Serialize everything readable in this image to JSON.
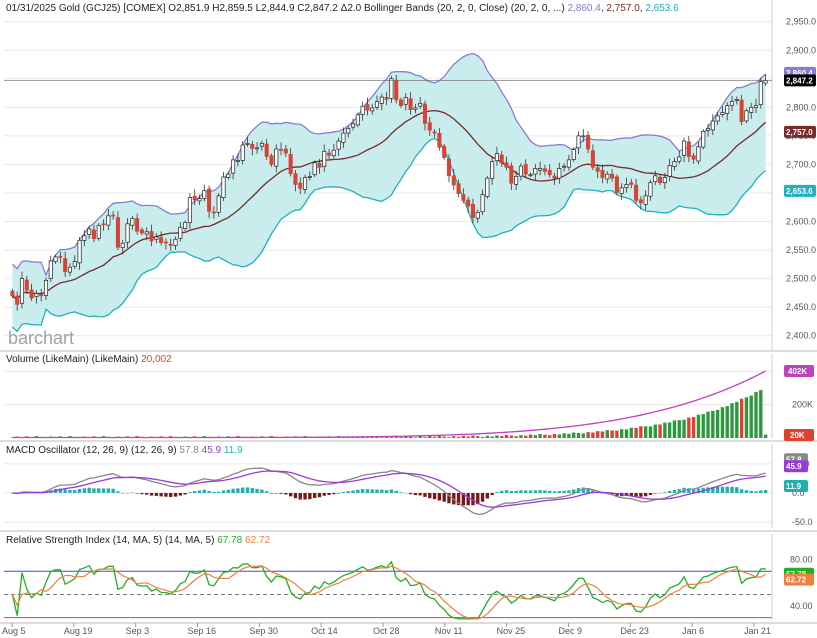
{
  "header": {
    "main_prefix": "01/31/2025 Gold (GCJ25) [COMEX] O2,851.9 H2,859.5 L2,844.9 C2,847.2 Δ2.0 Bollinger Bands (20, 2, 0, Close) (20, 2, 0, ...)",
    "bb_upper": "2,860.4",
    "bb_mid": "2,757.0",
    "bb_lower": "2,653.6",
    "volume_title": "Volume (LikeMain) (LikeMain)",
    "volume_value": "20,002",
    "macd_title": "MACD Oscillator (12, 26, 9) (12, 26, 9)",
    "macd_values": [
      "57.8",
      "45.9",
      "11.9"
    ],
    "rsi_title": "Relative Strength Index (14, MA, 5) (14, MA, 5)",
    "rsi_values": [
      "67.78",
      "62.72"
    ]
  },
  "logo": "barchart",
  "colors": {
    "up": "#1a7a1a",
    "down": "#d64436",
    "band_fill": "#c9ecec",
    "band_upper": "#8a7ad6",
    "band_mid": "#7a2a2a",
    "band_lower": "#20b0c0",
    "last_tag": "#000000",
    "vol_up": "#2a9a3a",
    "vol_down": "#e04030",
    "vol_ma": "#c040c0",
    "macd_line": "#888888",
    "macd_signal": "#9a3ad8",
    "macd_pos": "#20b0b0",
    "macd_neg": "#7a1818",
    "rsi_line": "#22b022",
    "rsi_ma": "#f08040",
    "rsi_level": "#3a4ad8"
  },
  "chart_data": [
    {
      "type": "candlestick",
      "title": "01/31/2025 Gold (GCJ25) [COMEX]",
      "x_tick_labels": [
        "Aug 5",
        "Aug 19",
        "Sep 3",
        "Sep 16",
        "Sep 30",
        "Oct 14",
        "Oct 28",
        "Nov 11",
        "Nov 25",
        "Dec 9",
        "Dec 23",
        "Jan 6",
        "Jan 21"
      ],
      "y_tick_labels": [
        "2,400.0",
        "2,450.0",
        "2,500.0",
        "2,550.0",
        "2,600.0",
        "2,650.0",
        "2,700.0",
        "2,750.0",
        "2,800.0",
        "2,850.0",
        "2,900.0",
        "2,950.0"
      ],
      "ylim": [
        2375,
        2960
      ],
      "price_tags": {
        "upper": "2,860.4",
        "last": "2,847.2",
        "mid": "2,757.0",
        "lower": "2,653.6"
      },
      "closes": [
        2470,
        2455,
        2500,
        2480,
        2466,
        2474,
        2470,
        2497,
        2531,
        2538,
        2538,
        2512,
        2520,
        2530,
        2567,
        2575,
        2587,
        2570,
        2593,
        2595,
        2610,
        2610,
        2555,
        2562,
        2596,
        2605,
        2583,
        2580,
        2582,
        2566,
        2573,
        2563,
        2563,
        2559,
        2569,
        2590,
        2598,
        2642,
        2638,
        2640,
        2654,
        2618,
        2615,
        2645,
        2678,
        2683,
        2708,
        2707,
        2734,
        2737,
        2728,
        2729,
        2737,
        2714,
        2700,
        2727,
        2725,
        2720,
        2684,
        2665,
        2658,
        2677,
        2679,
        2703,
        2695,
        2723,
        2716,
        2725,
        2741,
        2755,
        2763,
        2771,
        2787,
        2802,
        2795,
        2799,
        2810,
        2818,
        2814,
        2850,
        2813,
        2803,
        2817,
        2796,
        2799,
        2807,
        2772,
        2760,
        2755,
        2730,
        2712,
        2680,
        2664,
        2649,
        2637,
        2627,
        2607,
        2616,
        2647,
        2676,
        2705,
        2719,
        2703,
        2695,
        2667,
        2679,
        2697,
        2683,
        2682,
        2693,
        2693,
        2688,
        2682,
        2676,
        2693,
        2697,
        2708,
        2726,
        2750,
        2750,
        2727,
        2695,
        2688,
        2677,
        2683,
        2676,
        2651,
        2659,
        2665,
        2665,
        2637,
        2633,
        2645,
        2668,
        2680,
        2668,
        2677,
        2698,
        2705,
        2713,
        2741,
        2714,
        2709,
        2731,
        2758,
        2763,
        2776,
        2785,
        2791,
        2803,
        2810,
        2814,
        2775,
        2794,
        2800,
        2803,
        2845,
        2847
      ],
      "bollinger": {
        "upper_start": 2565,
        "upper_end": 2860.4,
        "mid_start": 2500,
        "mid_end": 2757.0,
        "lower_start": 2440,
        "lower_end": 2653.6
      }
    },
    {
      "type": "bar",
      "title": "Volume (LikeMain)",
      "y_tick_labels": [
        "200K",
        "400K"
      ],
      "ylim": [
        0,
        420000
      ],
      "last_value": 20002,
      "volume_ma_last": 402000
    },
    {
      "type": "line",
      "title": "MACD Oscillator (12, 26, 9)",
      "y_tick_labels": [
        "50.0",
        "0.0",
        "-50.0"
      ],
      "ylim": [
        -60,
        60
      ],
      "last": {
        "macd": 57.8,
        "signal": 45.9,
        "histogram": 11.9
      }
    },
    {
      "type": "line",
      "title": "Relative Strength Index (14, MA, 5)",
      "y_tick_labels": [
        "80.00",
        "40.00"
      ],
      "ylim": [
        28,
        90
      ],
      "levels": [
        70,
        50,
        30
      ],
      "last": {
        "rsi": 67.78,
        "rsi_ma": 62.72
      }
    }
  ]
}
